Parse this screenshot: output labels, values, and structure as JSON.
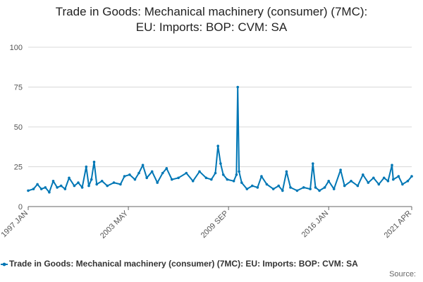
{
  "title_line1": "Trade in Goods: Mechanical machinery (consumer) (7MC):",
  "title_line2": "EU: Imports: BOP: CVM: SA",
  "legend_label": "Trade in Goods: Mechanical machinery (consumer) (7MC): EU: Imports: BOP: CVM: SA",
  "source_label": "Source:",
  "colors": {
    "series": "#0077b5",
    "grid": "#d8d8d8",
    "axis": "#666666"
  },
  "chart_data": {
    "type": "line",
    "title": "Trade in Goods: Mechanical machinery (consumer) (7MC): EU: Imports: BOP: CVM: SA",
    "xlabel": "",
    "ylabel": "",
    "x_range": [
      "1997-01",
      "2021-04"
    ],
    "x_ticks": [
      "1997 JAN",
      "2003 MAY",
      "2009 SEP",
      "2016 JAN",
      "2021 APR"
    ],
    "y_ticks": [
      0,
      25,
      50,
      75,
      100
    ],
    "ylim": [
      0,
      100
    ],
    "grid": true,
    "legend_position": "bottom",
    "series": [
      {
        "name": "Trade in Goods: Mechanical machinery (consumer) (7MC): EU: Imports: BOP: CVM: SA",
        "points": [
          [
            "1997-01",
            10
          ],
          [
            "1997-05",
            11
          ],
          [
            "1997-08",
            14
          ],
          [
            "1997-11",
            11
          ],
          [
            "1998-02",
            12
          ],
          [
            "1998-05",
            9
          ],
          [
            "1998-08",
            16
          ],
          [
            "1998-11",
            12
          ],
          [
            "1999-02",
            13
          ],
          [
            "1999-05",
            11
          ],
          [
            "1999-08",
            18
          ],
          [
            "1999-12",
            13
          ],
          [
            "2000-03",
            15
          ],
          [
            "2000-06",
            12
          ],
          [
            "2000-09",
            25
          ],
          [
            "2000-11",
            13
          ],
          [
            "2001-01",
            17
          ],
          [
            "2001-03",
            28
          ],
          [
            "2001-05",
            14
          ],
          [
            "2001-09",
            16
          ],
          [
            "2002-01",
            13
          ],
          [
            "2002-06",
            15
          ],
          [
            "2002-11",
            14
          ],
          [
            "2003-02",
            19
          ],
          [
            "2003-06",
            20
          ],
          [
            "2003-10",
            17
          ],
          [
            "2004-01",
            21
          ],
          [
            "2004-04",
            26
          ],
          [
            "2004-07",
            18
          ],
          [
            "2004-11",
            22
          ],
          [
            "2005-03",
            15
          ],
          [
            "2005-07",
            21
          ],
          [
            "2005-10",
            24
          ],
          [
            "2006-02",
            17
          ],
          [
            "2006-07",
            18
          ],
          [
            "2007-01",
            21
          ],
          [
            "2007-06",
            16
          ],
          [
            "2007-11",
            22
          ],
          [
            "2008-04",
            18
          ],
          [
            "2008-08",
            17
          ],
          [
            "2008-11",
            21
          ],
          [
            "2009-01",
            38
          ],
          [
            "2009-03",
            27
          ],
          [
            "2009-05",
            20
          ],
          [
            "2009-08",
            17
          ],
          [
            "2010-01",
            16
          ],
          [
            "2010-03",
            20
          ],
          [
            "2010-04",
            75
          ],
          [
            "2010-05",
            22
          ],
          [
            "2010-07",
            15
          ],
          [
            "2010-11",
            11
          ],
          [
            "2011-03",
            13
          ],
          [
            "2011-07",
            12
          ],
          [
            "2011-10",
            19
          ],
          [
            "2012-02",
            14
          ],
          [
            "2012-07",
            11
          ],
          [
            "2012-11",
            13
          ],
          [
            "2013-02",
            10
          ],
          [
            "2013-05",
            22
          ],
          [
            "2013-08",
            12
          ],
          [
            "2014-01",
            10
          ],
          [
            "2014-06",
            12
          ],
          [
            "2014-11",
            11
          ],
          [
            "2015-01",
            27
          ],
          [
            "2015-03",
            12
          ],
          [
            "2015-06",
            10
          ],
          [
            "2015-10",
            12
          ],
          [
            "2016-01",
            16
          ],
          [
            "2016-05",
            11
          ],
          [
            "2016-10",
            23
          ],
          [
            "2017-01",
            13
          ],
          [
            "2017-06",
            16
          ],
          [
            "2017-11",
            13
          ],
          [
            "2018-03",
            20
          ],
          [
            "2018-07",
            15
          ],
          [
            "2018-11",
            18
          ],
          [
            "2019-03",
            14
          ],
          [
            "2019-07",
            18
          ],
          [
            "2019-10",
            16
          ],
          [
            "2020-01",
            26
          ],
          [
            "2020-02",
            17
          ],
          [
            "2020-06",
            19
          ],
          [
            "2020-09",
            14
          ],
          [
            "2021-01",
            16
          ],
          [
            "2021-04",
            19
          ]
        ]
      }
    ]
  }
}
